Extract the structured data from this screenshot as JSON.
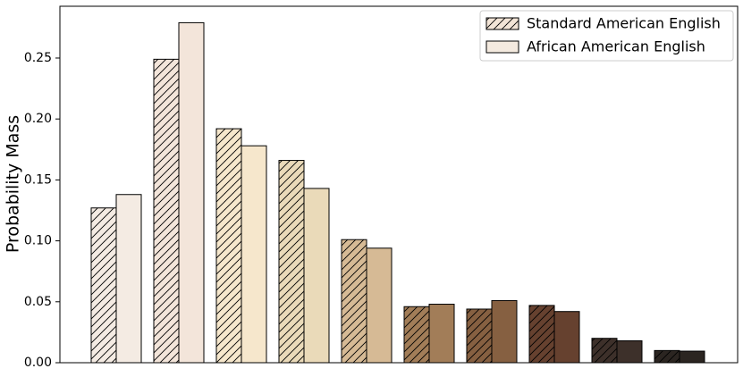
{
  "chart_data": {
    "type": "bar",
    "y_label": "Probability Mass",
    "categories": [
      null,
      null,
      null,
      null,
      null,
      null,
      null,
      null,
      null,
      null
    ],
    "category_colors": [
      "#f4ebe3",
      "#f3e5da",
      "#f6e7cc",
      "#eadab9",
      "#d6ba95",
      "#a27d58",
      "#866041",
      "#66412f",
      "#3d302a",
      "#2b2521"
    ],
    "series": [
      {
        "name": "Standard American English",
        "color": "#f2e4d6",
        "hatch": "///",
        "values": [
          0.127,
          0.249,
          0.192,
          0.166,
          0.101,
          0.046,
          0.044,
          0.047,
          0.02,
          0.01
        ]
      },
      {
        "name": "African American English",
        "color": "#f4eadf",
        "values": [
          0.138,
          0.279,
          0.178,
          0.143,
          0.094,
          0.048,
          0.051,
          0.042,
          0.018,
          0.0095
        ]
      }
    ],
    "ylim": [
      0,
      0.2925
    ],
    "yticks": [
      {
        "value": 0,
        "label": "0.00"
      },
      {
        "value": 0.05,
        "label": "0.05"
      },
      {
        "value": 0.1,
        "label": "0.10"
      },
      {
        "value": 0.15,
        "label": "0.15"
      },
      {
        "value": 0.2,
        "label": "0.20"
      },
      {
        "value": 0.25,
        "label": "0.25"
      }
    ],
    "legend": "upper right"
  }
}
